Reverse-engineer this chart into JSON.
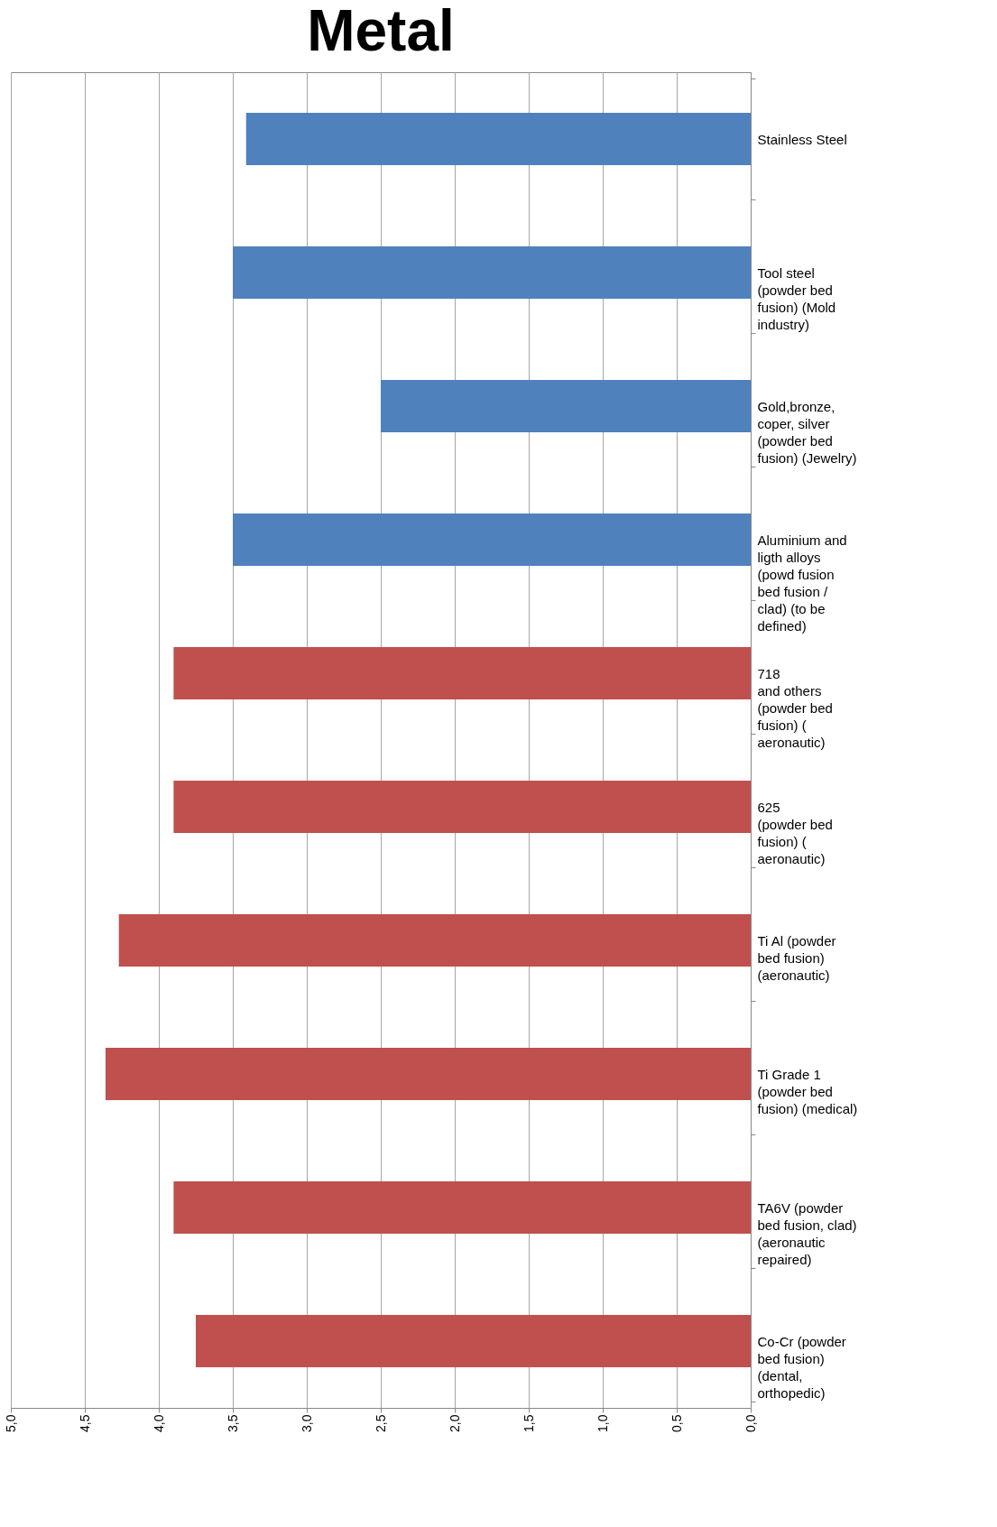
{
  "chart_data": {
    "type": "bar",
    "title": "Metal",
    "orientation": "horizontal",
    "categories": [
      "Stainless Steel",
      "Tool steel\n(powder bed\nfusion) (Mold\nindustry)",
      "Gold,bronze,\ncoper, silver\n(powder bed\nfusion) (Jewelry)",
      "Aluminium and\nligth alloys\n(powd fusion\nbed fusion /\nclad) (to be\ndefined)",
      "718\nand others\n(powder bed\nfusion) (\naeronautic)",
      "625\n(powder bed\nfusion) (\naeronautic)",
      "Ti Al (powder\nbed fusion)\n(aeronautic)",
      "Ti Grade 1\n(powder bed\nfusion) (medical)",
      "TA6V (powder\nbed fusion, clad)\n(aeronautic\nrepaired)",
      "Co-Cr (powder\nbed fusion)\n(dental,\northopedic)"
    ],
    "values": [
      3.41,
      3.5,
      2.5,
      3.5,
      3.9,
      3.9,
      4.27,
      4.36,
      3.9,
      3.75
    ],
    "colors": [
      "#4f81bd",
      "#4f81bd",
      "#4f81bd",
      "#4f81bd",
      "#c0504d",
      "#c0504d",
      "#c0504d",
      "#c0504d",
      "#c0504d",
      "#c0504d"
    ],
    "xlim": [
      5,
      0
    ],
    "xticks": [
      {
        "value": 5,
        "label": "5,0"
      },
      {
        "value": 4.5,
        "label": "4,5"
      },
      {
        "value": 4,
        "label": "4,0"
      },
      {
        "value": 3.5,
        "label": "3,5"
      },
      {
        "value": 3,
        "label": "3,0"
      },
      {
        "value": 2.5,
        "label": "2,5"
      },
      {
        "value": 2,
        "label": "2,0"
      },
      {
        "value": 1.5,
        "label": "1,5"
      },
      {
        "value": 1,
        "label": "1,0"
      },
      {
        "value": 0.5,
        "label": "0,5"
      },
      {
        "value": 0,
        "label": "0,0"
      }
    ],
    "grid": "x",
    "legend": false
  }
}
